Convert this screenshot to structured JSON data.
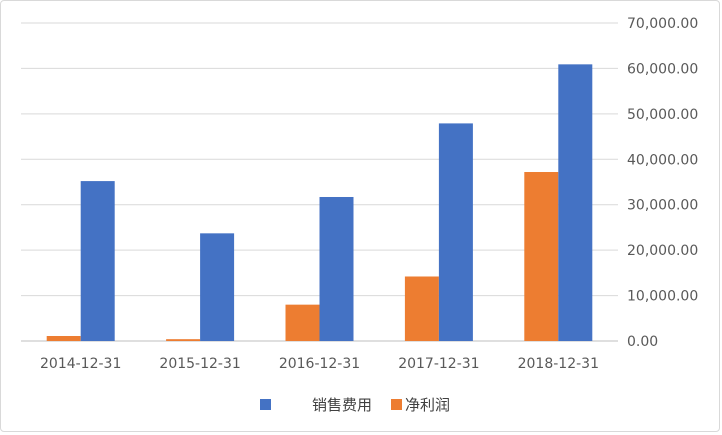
{
  "chart_data": {
    "type": "bar",
    "categories": [
      "2014-12-31",
      "2015-12-31",
      "2016-12-31",
      "2017-12-31",
      "2018-12-31"
    ],
    "series": [
      {
        "name": "净利润",
        "color": "#ed7d31",
        "values": [
          1100,
          400,
          8000,
          14200,
          37200
        ]
      },
      {
        "name": "销售费用",
        "color": "#4472c4",
        "values": [
          35200,
          23700,
          31700,
          47900,
          60900
        ]
      }
    ],
    "ylim": [
      0,
      70000
    ],
    "yticks": [
      "0.00",
      "10,000.00",
      "20,000.00",
      "30,000.00",
      "40,000.00",
      "50,000.00",
      "60,000.00",
      "70,000.00"
    ],
    "ytick_values": [
      0,
      10000,
      20000,
      30000,
      40000,
      50000,
      60000,
      70000
    ],
    "y_axis_side": "right",
    "grid": true,
    "legend": {
      "position": "bottom",
      "entries": [
        "销售费用",
        "净利润"
      ]
    }
  }
}
